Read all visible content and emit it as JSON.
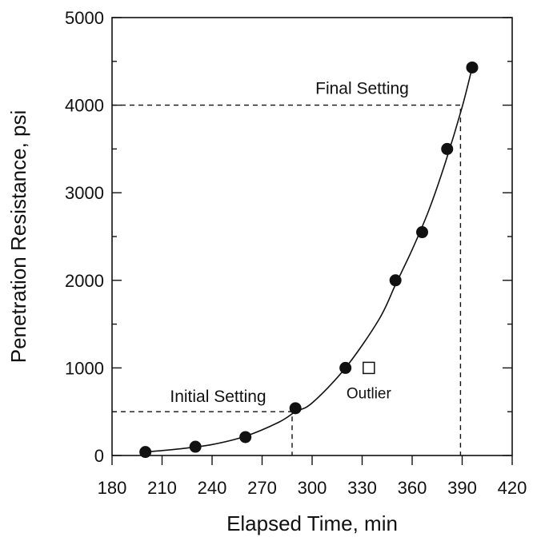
{
  "chart_data": {
    "type": "scatter",
    "xlabel": "Elapsed Time, min",
    "ylabel": "Penetration Resistance, psi",
    "xlim": [
      180,
      420
    ],
    "ylim": [
      0,
      5000
    ],
    "x_ticks": [
      180,
      210,
      240,
      270,
      300,
      330,
      360,
      390,
      420
    ],
    "y_ticks": [
      0,
      1000,
      2000,
      3000,
      4000,
      5000
    ],
    "grid": false,
    "series": [
      {
        "marker": "filled-circle",
        "x": [
          200,
          230,
          260,
          290,
          320,
          350,
          366,
          381,
          396
        ],
        "y": [
          40,
          100,
          210,
          540,
          1000,
          2000,
          2550,
          3500,
          4430
        ]
      },
      {
        "marker": "open-square",
        "x": [
          334
        ],
        "y": [
          1000
        ]
      }
    ],
    "fit_curve": {
      "x": [
        200,
        220,
        240,
        260,
        280,
        290,
        300,
        320,
        340,
        350,
        360,
        370,
        380,
        390,
        396
      ],
      "y": [
        40,
        75,
        125,
        220,
        380,
        500,
        600,
        1000,
        1550,
        1950,
        2350,
        2800,
        3350,
        3980,
        4430
      ]
    },
    "reference_lines": [
      {
        "label": "Initial Setting",
        "y": 500,
        "x": 288
      },
      {
        "label": "Final Setting",
        "y": 4000,
        "x": 389
      }
    ],
    "annotations": [
      {
        "text": "Outlier",
        "x": 334,
        "y": 1000
      }
    ]
  }
}
